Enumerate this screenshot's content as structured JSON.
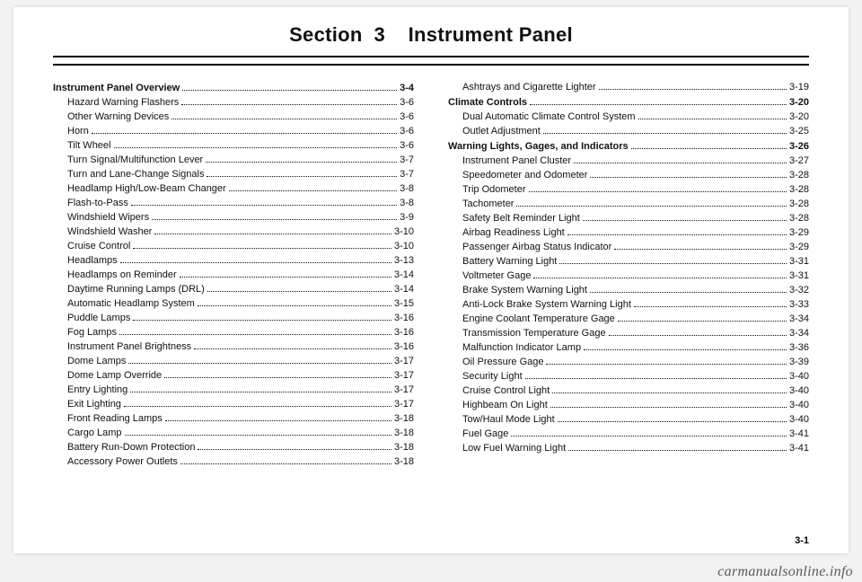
{
  "title": "Section  3    Instrument Panel",
  "page_number": "3-1",
  "watermark": "carmanualsonline.info",
  "columns": [
    [
      {
        "type": "header",
        "label": "Instrument Panel Overview",
        "page": "3-4"
      },
      {
        "type": "item",
        "label": "Hazard Warning Flashers",
        "page": "3-6"
      },
      {
        "type": "item",
        "label": "Other Warning Devices",
        "page": "3-6"
      },
      {
        "type": "item",
        "label": "Horn",
        "page": "3-6"
      },
      {
        "type": "item",
        "label": "Tilt Wheel",
        "page": "3-6"
      },
      {
        "type": "item",
        "label": "Turn Signal/Multifunction Lever",
        "page": "3-7"
      },
      {
        "type": "item",
        "label": "Turn and Lane-Change Signals",
        "page": "3-7"
      },
      {
        "type": "item",
        "label": "Headlamp High/Low-Beam Changer",
        "page": "3-8"
      },
      {
        "type": "item",
        "label": "Flash-to-Pass",
        "page": "3-8"
      },
      {
        "type": "item",
        "label": "Windshield Wipers",
        "page": "3-9"
      },
      {
        "type": "item",
        "label": "Windshield Washer",
        "page": "3-10"
      },
      {
        "type": "item",
        "label": "Cruise Control",
        "page": "3-10"
      },
      {
        "type": "item",
        "label": "Headlamps",
        "page": "3-13"
      },
      {
        "type": "item",
        "label": "Headlamps on Reminder",
        "page": "3-14"
      },
      {
        "type": "item",
        "label": "Daytime Running Lamps (DRL)",
        "page": "3-14"
      },
      {
        "type": "item",
        "label": "Automatic Headlamp System",
        "page": "3-15"
      },
      {
        "type": "item",
        "label": "Puddle Lamps",
        "page": "3-16"
      },
      {
        "type": "item",
        "label": "Fog Lamps",
        "page": "3-16"
      },
      {
        "type": "item",
        "label": "Instrument Panel Brightness",
        "page": "3-16"
      },
      {
        "type": "item",
        "label": "Dome Lamps",
        "page": "3-17"
      },
      {
        "type": "item",
        "label": "Dome Lamp Override",
        "page": "3-17"
      },
      {
        "type": "item",
        "label": "Entry Lighting",
        "page": "3-17"
      },
      {
        "type": "item",
        "label": "Exit Lighting",
        "page": "3-17"
      },
      {
        "type": "item",
        "label": "Front Reading Lamps",
        "page": "3-18"
      },
      {
        "type": "item",
        "label": "Cargo Lamp",
        "page": "3-18"
      },
      {
        "type": "item",
        "label": "Battery Run-Down Protection",
        "page": "3-18"
      },
      {
        "type": "item",
        "label": "Accessory Power Outlets",
        "page": "3-18"
      }
    ],
    [
      {
        "type": "item",
        "label": "Ashtrays and Cigarette Lighter",
        "page": "3-19"
      },
      {
        "type": "header",
        "label": "Climate Controls",
        "page": "3-20"
      },
      {
        "type": "item",
        "label": "Dual Automatic Climate Control System",
        "page": "3-20"
      },
      {
        "type": "item",
        "label": "Outlet Adjustment",
        "page": "3-25"
      },
      {
        "type": "header",
        "label": "Warning Lights, Gages, and Indicators",
        "page": "3-26"
      },
      {
        "type": "item",
        "label": "Instrument Panel Cluster",
        "page": "3-27"
      },
      {
        "type": "item",
        "label": "Speedometer and Odometer",
        "page": "3-28"
      },
      {
        "type": "item",
        "label": "Trip Odometer",
        "page": "3-28"
      },
      {
        "type": "item",
        "label": "Tachometer",
        "page": "3-28"
      },
      {
        "type": "item",
        "label": "Safety Belt Reminder Light",
        "page": "3-28"
      },
      {
        "type": "item",
        "label": "Airbag Readiness Light",
        "page": "3-29"
      },
      {
        "type": "item",
        "label": "Passenger Airbag Status Indicator",
        "page": "3-29"
      },
      {
        "type": "item",
        "label": "Battery Warning Light",
        "page": "3-31"
      },
      {
        "type": "item",
        "label": "Voltmeter Gage",
        "page": "3-31"
      },
      {
        "type": "item",
        "label": "Brake System Warning Light",
        "page": "3-32"
      },
      {
        "type": "item",
        "label": "Anti-Lock Brake System Warning Light",
        "page": "3-33"
      },
      {
        "type": "item",
        "label": "Engine Coolant Temperature Gage",
        "page": "3-34"
      },
      {
        "type": "item",
        "label": "Transmission Temperature Gage",
        "page": "3-34"
      },
      {
        "type": "item",
        "label": "Malfunction Indicator Lamp",
        "page": "3-36"
      },
      {
        "type": "item",
        "label": "Oil Pressure Gage",
        "page": "3-39"
      },
      {
        "type": "item",
        "label": "Security Light",
        "page": "3-40"
      },
      {
        "type": "item",
        "label": "Cruise Control Light",
        "page": "3-40"
      },
      {
        "type": "item",
        "label": "Highbeam On Light",
        "page": "3-40"
      },
      {
        "type": "item",
        "label": "Tow/Haul Mode Light",
        "page": "3-40"
      },
      {
        "type": "item",
        "label": "Fuel Gage",
        "page": "3-41"
      },
      {
        "type": "item",
        "label": "Low Fuel Warning Light",
        "page": "3-41"
      }
    ]
  ]
}
